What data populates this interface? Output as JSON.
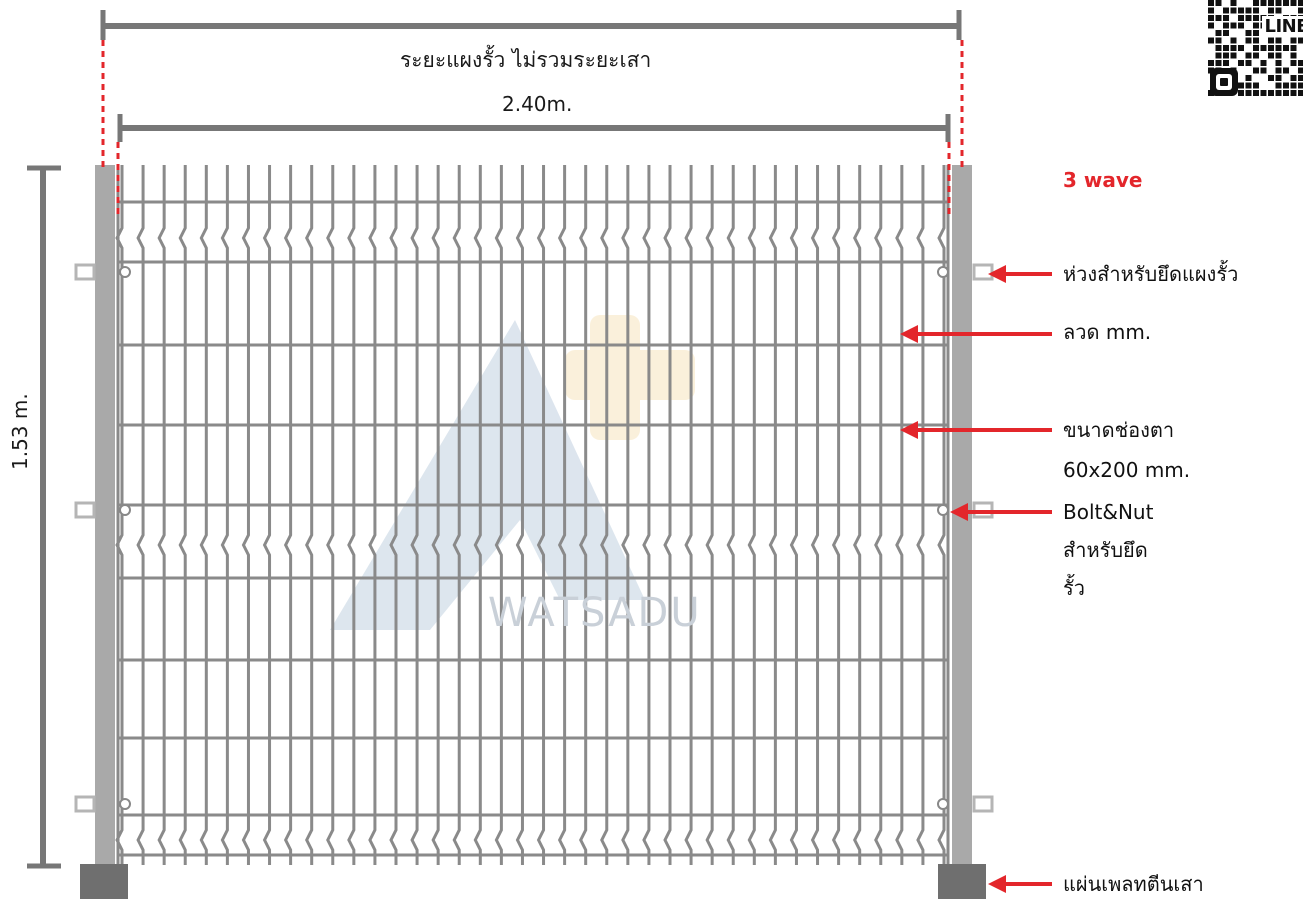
{
  "dimensions": {
    "overall_width_label": "",
    "panel_width_caption": "ระยะแผงรั้ว ไม่รวมระยะเสา",
    "panel_width": "2.40m.",
    "height": "1.53 m."
  },
  "callouts": {
    "wave": "3 wave",
    "clip": "ห่วงสำหรับยึดแผงรั้ว",
    "wire": "ลวด  mm.",
    "mesh_size_line1": "ขนาดช่องตา",
    "mesh_size_line2": "60x200 mm.",
    "bolt_line1": "Bolt&Nut",
    "bolt_line2": "สำหรับยึด",
    "bolt_line3": "รั้ว",
    "base_plate": "แผ่นเพลทตีนเสา"
  },
  "watermark": "WATSADU",
  "qr_label": "LINE",
  "colors": {
    "fence": "#8a8a8a",
    "post": "#a9a9a9",
    "dimension_line": "#777777",
    "accent_red": "#e3262b",
    "base_plate": "#6f6f6f"
  },
  "icons": {
    "qr_code": "qr-code-icon",
    "line_logo": "line-logo-icon",
    "arrows": "arrow-left-icon"
  }
}
